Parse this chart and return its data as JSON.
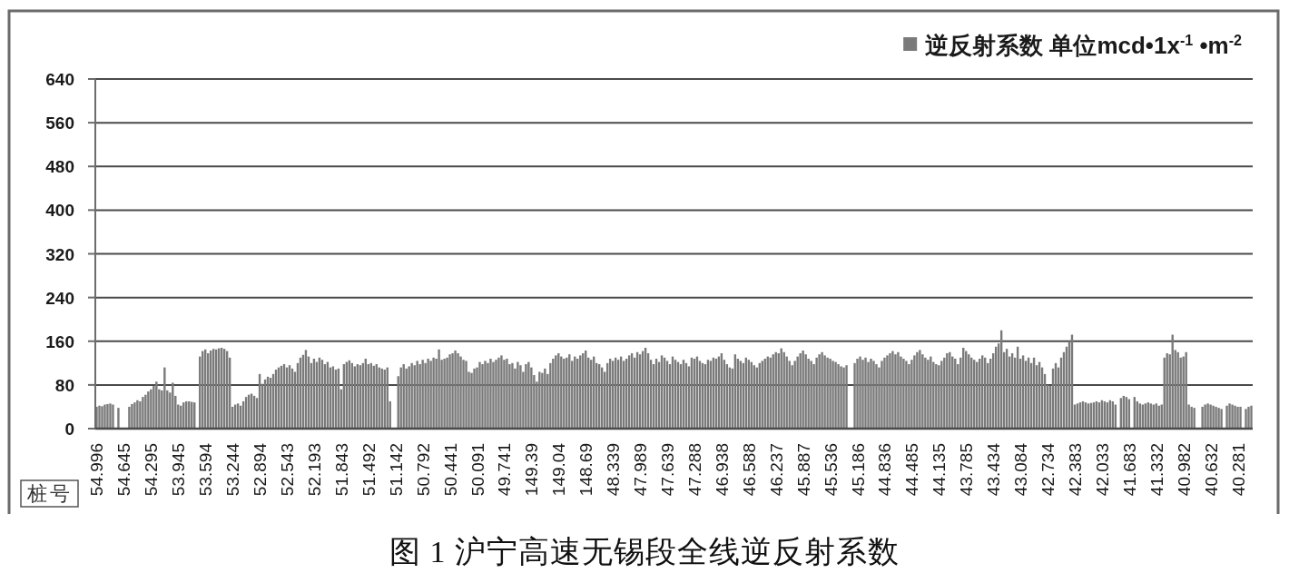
{
  "chart_data": {
    "type": "bar",
    "xlabel": "桩号",
    "annotations": [
      "图 1 沪宁高速无锡段全线逆反射系数"
    ],
    "categories": [
      "54.996",
      null,
      null,
      null,
      null,
      null,
      null,
      null,
      null,
      null,
      "54.645",
      null,
      null,
      null,
      null,
      null,
      null,
      null,
      null,
      null,
      "54.295",
      null,
      null,
      null,
      null,
      null,
      null,
      null,
      null,
      null,
      "53.945",
      null,
      null,
      null,
      null,
      null,
      null,
      null,
      null,
      null,
      "53.594",
      null,
      null,
      null,
      null,
      null,
      null,
      null,
      null,
      null,
      "53.244",
      null,
      null,
      null,
      null,
      null,
      null,
      null,
      null,
      null,
      "52.894",
      null,
      null,
      null,
      null,
      null,
      null,
      null,
      null,
      null,
      "52.543",
      null,
      null,
      null,
      null,
      null,
      null,
      null,
      null,
      null,
      "52.193",
      null,
      null,
      null,
      null,
      null,
      null,
      null,
      null,
      null,
      "51.843",
      null,
      null,
      null,
      null,
      null,
      null,
      null,
      null,
      null,
      "51.492",
      null,
      null,
      null,
      null,
      null,
      null,
      null,
      null,
      null,
      "51.142",
      null,
      null,
      null,
      null,
      null,
      null,
      null,
      null,
      null,
      "50.792",
      null,
      null,
      null,
      null,
      null,
      null,
      null,
      null,
      null,
      "50.441",
      null,
      null,
      null,
      null,
      null,
      null,
      null,
      null,
      null,
      "50.091",
      null,
      null,
      null,
      null,
      null,
      null,
      null,
      null,
      null,
      "49.741",
      null,
      null,
      null,
      null,
      null,
      null,
      null,
      null,
      null,
      "149.39",
      null,
      null,
      null,
      null,
      null,
      null,
      null,
      null,
      null,
      "149.04",
      null,
      null,
      null,
      null,
      null,
      null,
      null,
      null,
      null,
      "148.69",
      null,
      null,
      null,
      null,
      null,
      null,
      null,
      null,
      null,
      "48.339",
      null,
      null,
      null,
      null,
      null,
      null,
      null,
      null,
      null,
      "47.989",
      null,
      null,
      null,
      null,
      null,
      null,
      null,
      null,
      null,
      "47.639",
      null,
      null,
      null,
      null,
      null,
      null,
      null,
      null,
      null,
      "47.288",
      null,
      null,
      null,
      null,
      null,
      null,
      null,
      null,
      null,
      "46.938",
      null,
      null,
      null,
      null,
      null,
      null,
      null,
      null,
      null,
      "46.588",
      null,
      null,
      null,
      null,
      null,
      null,
      null,
      null,
      null,
      "46.237",
      null,
      null,
      null,
      null,
      null,
      null,
      null,
      null,
      null,
      "45.887",
      null,
      null,
      null,
      null,
      null,
      null,
      null,
      null,
      null,
      "45.536",
      null,
      null,
      null,
      null,
      null,
      null,
      null,
      null,
      null,
      "45.186",
      null,
      null,
      null,
      null,
      null,
      null,
      null,
      null,
      null,
      "44.836",
      null,
      null,
      null,
      null,
      null,
      null,
      null,
      null,
      null,
      "44.485",
      null,
      null,
      null,
      null,
      null,
      null,
      null,
      null,
      null,
      "44.135",
      null,
      null,
      null,
      null,
      null,
      null,
      null,
      null,
      null,
      "43.785",
      null,
      null,
      null,
      null,
      null,
      null,
      null,
      null,
      null,
      "43.434",
      null,
      null,
      null,
      null,
      null,
      null,
      null,
      null,
      null,
      "43.084",
      null,
      null,
      null,
      null,
      null,
      null,
      null,
      null,
      null,
      "42.734",
      null,
      null,
      null,
      null,
      null,
      null,
      null,
      null,
      null,
      "42.383",
      null,
      null,
      null,
      null,
      null,
      null,
      null,
      null,
      null,
      "42.033",
      null,
      null,
      null,
      null,
      null,
      null,
      null,
      null,
      null,
      "41.683",
      null,
      null,
      null,
      null,
      null,
      null,
      null,
      null,
      null,
      "41.332",
      null,
      null,
      null,
      null,
      null,
      null,
      null,
      null,
      null,
      "40.982",
      null,
      null,
      null,
      null,
      null,
      null,
      null,
      null,
      null,
      "40.632",
      null,
      null,
      null,
      null,
      null,
      null,
      null,
      null,
      null,
      "40.281",
      null,
      null,
      null,
      null,
      null
    ],
    "series": [
      {
        "name": "逆反射系数 单位mcd•1x$^{-1}$ •m$^{-2}$",
        "color": "#7a7a7a",
        "values": [
          40,
          42,
          41,
          44,
          45,
          46,
          44,
          null,
          38,
          null,
          null,
          null,
          40,
          45,
          48,
          52,
          50,
          58,
          62,
          68,
          72,
          78,
          86,
          72,
          70,
          112,
          70,
          66,
          84,
          60,
          44,
          42,
          48,
          50,
          50,
          49,
          48,
          null,
          132,
          142,
          145,
          138,
          143,
          146,
          145,
          147,
          148,
          146,
          142,
          130,
          40,
          44,
          46,
          42,
          50,
          58,
          62,
          64,
          60,
          56,
          100,
          82,
          90,
          95,
          93,
          100,
          108,
          112,
          115,
          118,
          112,
          116,
          110,
          104,
          120,
          130,
          135,
          144,
          132,
          120,
          128,
          122,
          130,
          126,
          118,
          122,
          112,
          114,
          108,
          110,
          72,
          118,
          122,
          125,
          120,
          114,
          118,
          116,
          120,
          128,
          118,
          120,
          115,
          118,
          112,
          110,
          108,
          112,
          50,
          null,
          null,
          96,
          112,
          118,
          110,
          114,
          120,
          116,
          124,
          118,
          126,
          120,
          128,
          124,
          130,
          128,
          145,
          126,
          128,
          130,
          136,
          138,
          143,
          138,
          132,
          126,
          124,
          104,
          102,
          110,
          112,
          122,
          118,
          124,
          120,
          128,
          122,
          126,
          130,
          134,
          126,
          128,
          118,
          120,
          110,
          122,
          116,
          104,
          118,
          122,
          112,
          98,
          86,
          104,
          102,
          110,
          100,
          120,
          128,
          134,
          138,
          132,
          128,
          130,
          136,
          124,
          132,
          128,
          134,
          138,
          143,
          130,
          126,
          132,
          120,
          118,
          112,
          104,
          120,
          128,
          124,
          130,
          126,
          132,
          124,
          128,
          134,
          138,
          130,
          140,
          136,
          142,
          148,
          138,
          126,
          118,
          128,
          122,
          134,
          130,
          124,
          118,
          132,
          126,
          122,
          118,
          126,
          120,
          114,
          130,
          128,
          132,
          124,
          120,
          118,
          126,
          124,
          130,
          128,
          132,
          138,
          126,
          118,
          112,
          110,
          136,
          128,
          124,
          120,
          130,
          126,
          122,
          116,
          112,
          120,
          124,
          128,
          132,
          130,
          136,
          140,
          138,
          147,
          140,
          132,
          124,
          116,
          124,
          132,
          138,
          143,
          136,
          128,
          124,
          118,
          130,
          136,
          140,
          134,
          130,
          128,
          124,
          122,
          118,
          114,
          112,
          116,
          null,
          null,
          120,
          128,
          132,
          126,
          130,
          122,
          128,
          124,
          118,
          112,
          124,
          130,
          134,
          138,
          142,
          136,
          140,
          132,
          128,
          124,
          118,
          126,
          134,
          140,
          144,
          136,
          130,
          126,
          132,
          122,
          118,
          116,
          124,
          130,
          138,
          140,
          132,
          128,
          118,
          130,
          148,
          142,
          136,
          130,
          126,
          122,
          128,
          134,
          130,
          120,
          128,
          138,
          150,
          156,
          180,
          140,
          146,
          132,
          138,
          130,
          150,
          128,
          134,
          124,
          130,
          120,
          130,
          116,
          122,
          112,
          100,
          80,
          78,
          110,
          120,
          112,
          130,
          140,
          150,
          160,
          172,
          44,
          46,
          48,
          50,
          48,
          46,
          47,
          48,
          50,
          48,
          52,
          50,
          48,
          52,
          50,
          44,
          null,
          56,
          60,
          58,
          54,
          null,
          58,
          50,
          46,
          44,
          46,
          48,
          46,
          44,
          46,
          42,
          44,
          130,
          138,
          136,
          172,
          144,
          140,
          130,
          132,
          140,
          44,
          40,
          38,
          null,
          null,
          40,
          44,
          46,
          44,
          42,
          40,
          38,
          36,
          null,
          42,
          46,
          44,
          42,
          40,
          40,
          null,
          36,
          40,
          42
        ]
      }
    ],
    "ylim": [
      0,
      640
    ],
    "yticks": [
      0,
      80,
      160,
      240,
      320,
      400,
      480,
      560,
      640
    ],
    "grid": "y",
    "legend": "top right"
  }
}
